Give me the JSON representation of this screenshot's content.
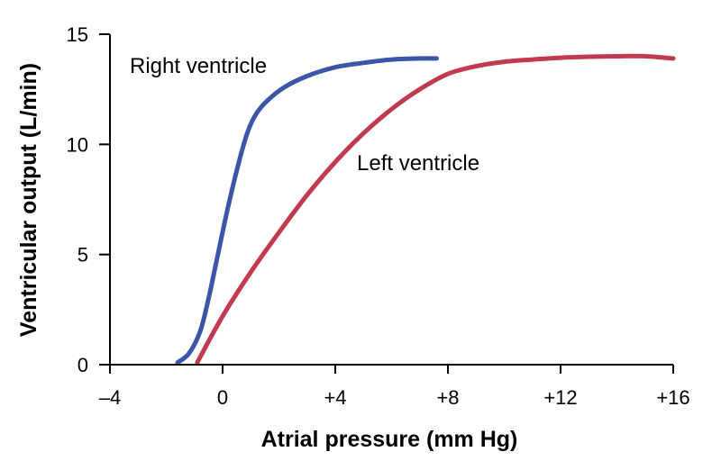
{
  "chart_data": {
    "type": "line",
    "title": "",
    "xlabel": "Atrial pressure (mm Hg)",
    "ylabel": "Ventricular output (L/min)",
    "xlim": [
      -4,
      16
    ],
    "ylim": [
      0,
      15
    ],
    "x_ticks": [
      -4,
      0,
      4,
      8,
      12,
      16
    ],
    "x_tick_labels": [
      "–4",
      "0",
      "+4",
      "+8",
      "+12",
      "+16"
    ],
    "y_ticks": [
      0,
      5,
      10,
      15
    ],
    "y_tick_labels": [
      "0",
      "5",
      "10",
      "15"
    ],
    "grid": false,
    "legend": "none",
    "series": [
      {
        "name": "Right ventricle",
        "color": "#3b55a8",
        "x": [
          -1.6,
          -1.2,
          -0.8,
          -0.5,
          -0.2,
          0.2,
          0.6,
          0.9,
          1.2,
          1.6,
          2.2,
          3.0,
          4.0,
          5.0,
          6.0,
          7.0,
          7.6
        ],
        "y": [
          0.1,
          0.5,
          1.5,
          3.0,
          4.8,
          7.2,
          9.3,
          10.6,
          11.4,
          12.0,
          12.6,
          13.1,
          13.5,
          13.7,
          13.85,
          13.9,
          13.9
        ]
      },
      {
        "name": "Left ventricle",
        "color": "#c23a4f",
        "x": [
          -0.9,
          0,
          1.0,
          2.0,
          3.0,
          4.0,
          5.0,
          6.0,
          7.0,
          8.0,
          9.0,
          10.0,
          11.0,
          12.0,
          13.0,
          14.0,
          15.0,
          16.0
        ],
        "y": [
          0.1,
          2.2,
          4.2,
          6.0,
          7.7,
          9.2,
          10.5,
          11.6,
          12.5,
          13.2,
          13.55,
          13.75,
          13.85,
          13.93,
          13.98,
          14.0,
          14.0,
          13.9
        ]
      }
    ],
    "annotations": [
      {
        "text": "Right ventricle",
        "series": "Right ventricle"
      },
      {
        "text": "Left ventricle",
        "series": "Left ventricle"
      }
    ]
  }
}
